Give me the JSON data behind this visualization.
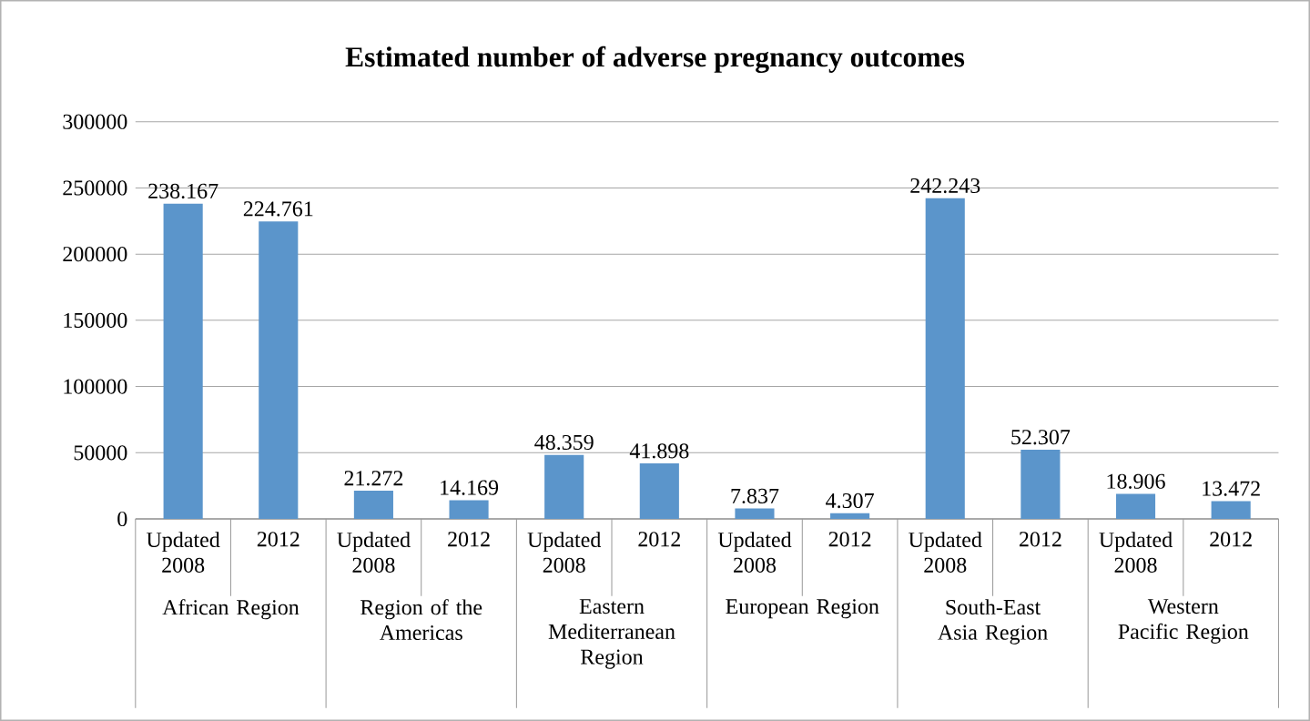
{
  "chart_data": {
    "type": "bar",
    "title": "Estimated number of adverse pregnancy outcomes",
    "categories": [
      "Updated 2008",
      "2012",
      "Updated 2008",
      "2012",
      "Updated 2008",
      "2012",
      "Updated 2008",
      "2012",
      "Updated 2008",
      "2012",
      "Updated 2008",
      "2012"
    ],
    "values": [
      238167,
      224761,
      21272,
      14169,
      48359,
      41898,
      7837,
      4307,
      242243,
      52307,
      18906,
      13472
    ],
    "value_labels": [
      "238.167",
      "224.761",
      "21.272",
      "14.169",
      "48.359",
      "41.898",
      "7.837",
      "4.307",
      "242.243",
      "52.307",
      "18.906",
      "13.472"
    ],
    "annotations": [
      "African Region",
      "Region of the Americas",
      "Eastern Mediterranean Region",
      "European Region",
      "South-East Asia Region",
      "Western Pacific Region"
    ],
    "color": "#5b95cb",
    "ylim": [
      0,
      300000
    ],
    "yticks": [
      0,
      50000,
      100000,
      150000,
      200000,
      250000,
      300000
    ],
    "grid": "y"
  }
}
